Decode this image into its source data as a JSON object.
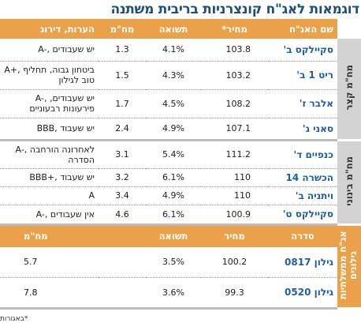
{
  "title": "דוגמאות לאג\"ח קונצרניות בריבית משתנה",
  "header": [
    "שם האג\"ח",
    "מחיר*",
    "תשואה",
    "מח\"מ",
    "הערות, דירוג"
  ],
  "groups": [
    {
      "label": "מח\"מ קצר",
      "rows": [
        [
          "סקיילקס ב'",
          "103.8",
          "4.1%",
          "1.3",
          "A-, יש שעבודים"
        ],
        [
          "ריט 1 ב'",
          "103.2",
          "4.3%",
          "1.5",
          "A+, ביטחון גבוה, תחליף טוב לגילון"
        ],
        [
          "אלבר ז'",
          "108.2",
          "4.5%",
          "1.7",
          "A-, יש שעבודים, פירעונות רבעוניים"
        ],
        [
          "סאני ג'",
          "107.1",
          "4.9%",
          "2.4",
          "BBB, יש שעבוד"
        ]
      ]
    },
    {
      "label": "מח\"מ בינוני",
      "rows": [
        [
          "כנפיים ד'",
          "111.2",
          "5.4%",
          "3.1",
          "A-, לאחרונה הורחבה הסדרה"
        ],
        [
          "הכשרה 14",
          "110",
          "6.1%",
          "3.2",
          "BBB+, יש שעבוד"
        ],
        [
          "ויתניה ב'",
          "110",
          "4.9%",
          "3.4",
          "A"
        ],
        [
          "סקיילקס ט'",
          "100.9",
          "6.1%",
          "4.6",
          "A-, אין שעבודים"
        ]
      ]
    }
  ],
  "government": {
    "label": "אג\"ח ממשלתיות גילונים",
    "header": [
      "סדרה",
      "מחיר",
      "תשואה",
      "מח\"מ"
    ],
    "rows": [
      [
        "גילון 0817",
        "100.2",
        "3.5%",
        "5.7"
      ],
      [
        "גילון 0520",
        "99.3",
        "3.6%",
        "7.8"
      ]
    ]
  },
  "footnote": "*באגורות"
}
